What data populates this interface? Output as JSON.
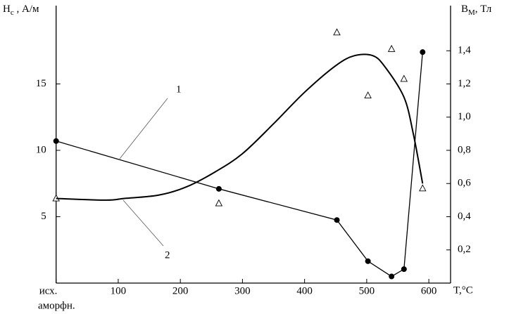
{
  "chart_data": {
    "type": "line",
    "y_label": {
      "main": "H",
      "sub": "c",
      "rest": " , А/м"
    },
    "y2_label": {
      "main": "B",
      "sub": "М",
      "rest": ", Тл"
    },
    "x_label": "T,°C",
    "xlim": [
      0,
      635
    ],
    "xticks": [
      {
        "value": 0,
        "label": "исх."
      },
      100,
      200,
      300,
      400,
      500,
      600
    ],
    "x_origin_note": "аморфн.",
    "ylim": [
      0,
      20.9
    ],
    "yticks": [
      5,
      10,
      15
    ],
    "y2lim": [
      0,
      1.672
    ],
    "y2ticks": [
      {
        "value": 0.2,
        "label": "0,2"
      },
      {
        "value": 0.4,
        "label": "0,4"
      },
      {
        "value": 0.6,
        "label": "0,6"
      },
      {
        "value": 0.8,
        "label": "0,8"
      },
      {
        "value": 1.0,
        "label": "1,0"
      },
      {
        "value": 1.2,
        "label": "1,2"
      },
      {
        "value": 1.4,
        "label": "1,4"
      }
    ],
    "series": [
      {
        "color": "#000000",
        "marker": "circle",
        "line": "straight",
        "axis": "y",
        "x": [
          0,
          262,
          452,
          502,
          540,
          560,
          590
        ],
        "values": [
          10.7,
          7.1,
          4.75,
          1.65,
          0.5,
          1.05,
          17.4
        ]
      },
      {
        "color": "#000000",
        "marker": "triangle",
        "line": "none",
        "axis": "y2",
        "x": [
          0,
          262,
          452,
          502,
          540,
          560,
          590
        ],
        "values": [
          0.51,
          0.48,
          1.51,
          1.13,
          1.41,
          1.23,
          0.57
        ]
      },
      {
        "color": "#000000",
        "marker": "none",
        "line": "smooth",
        "axis": "y2",
        "x": [
          0,
          80,
          110,
          165,
          210,
          256,
          300,
          350,
          400,
          450,
          480,
          510,
          530,
          560,
          575,
          590
        ],
        "values": [
          0.51,
          0.5,
          0.51,
          0.53,
          0.58,
          0.67,
          0.78,
          0.96,
          1.15,
          1.31,
          1.37,
          1.37,
          1.3,
          1.12,
          0.9,
          0.6
        ]
      }
    ],
    "annotations": [
      "1",
      "2"
    ]
  }
}
